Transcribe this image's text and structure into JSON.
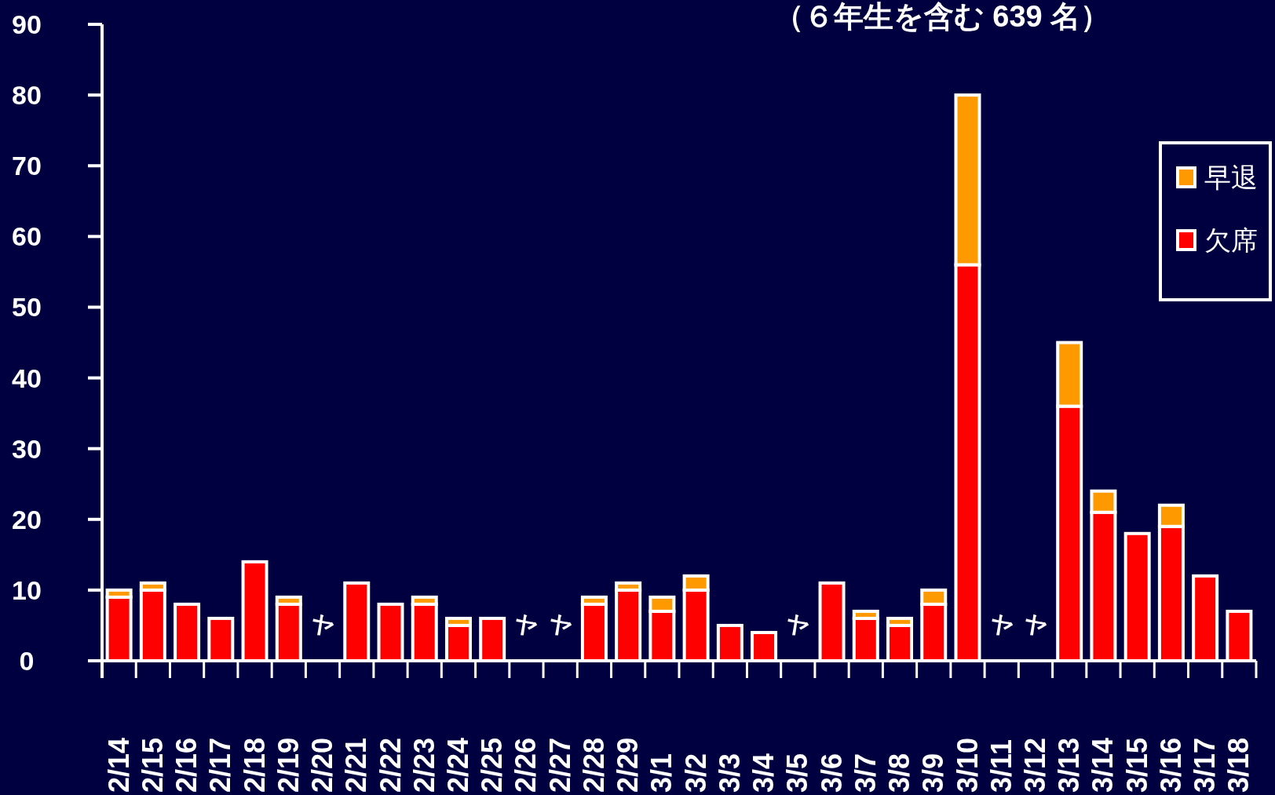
{
  "chart_data": {
    "type": "bar",
    "title": "（６年生を含む 639 名）",
    "categories": [
      "2/14",
      "2/15",
      "2/16",
      "2/17",
      "2/18",
      "2/19",
      "2/20",
      "2/21",
      "2/22",
      "2/23",
      "2/24",
      "2/25",
      "2/26",
      "2/27",
      "2/28",
      "2/29",
      "3/1",
      "3/2",
      "3/3",
      "3/4",
      "3/5",
      "3/6",
      "3/7",
      "3/8",
      "3/9",
      "3/10",
      "3/11",
      "3/12",
      "3/13",
      "3/14",
      "3/15",
      "3/16",
      "3/17",
      "3/18"
    ],
    "series": [
      {
        "name": "欠席",
        "color": "#ff0000",
        "values": [
          9,
          10,
          8,
          6,
          14,
          8,
          null,
          11,
          8,
          8,
          5,
          6,
          null,
          null,
          8,
          10,
          7,
          10,
          5,
          4,
          null,
          11,
          6,
          5,
          8,
          56,
          null,
          null,
          36,
          21,
          18,
          19,
          12,
          7
        ]
      },
      {
        "name": "早退",
        "color": "#ff9900",
        "values": [
          1,
          1,
          0,
          0,
          0,
          1,
          null,
          0,
          0,
          1,
          1,
          0,
          null,
          null,
          1,
          1,
          2,
          2,
          0,
          0,
          null,
          0,
          1,
          1,
          2,
          24,
          null,
          null,
          9,
          3,
          0,
          3,
          0,
          0
        ]
      }
    ],
    "stacked": true,
    "ylim": [
      0,
      90
    ],
    "yticks": [
      0,
      10,
      20,
      30,
      40,
      50,
      60,
      70,
      80,
      90
    ],
    "legend": "right",
    "annotations": [
      "ヤ",
      "ヤ",
      "ヤ",
      "ヤ",
      "ヤ",
      "ヤ"
    ]
  }
}
